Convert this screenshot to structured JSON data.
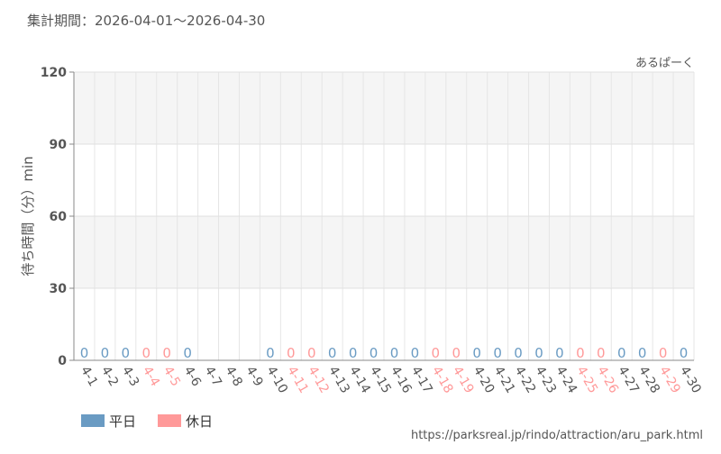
{
  "chart_data": {
    "type": "bar",
    "title": "集計期間：2026-04-01～2026-04-30",
    "brand": "あるぱーく",
    "ylabel": "待ち時間（分）min",
    "source": "https://parksreal.jp/rindo/attraction/aru_park.html",
    "categories": [
      "4-1",
      "4-2",
      "4-3",
      "4-4",
      "4-5",
      "4-6",
      "4-7",
      "4-8",
      "4-9",
      "4-10",
      "4-11",
      "4-12",
      "4-13",
      "4-14",
      "4-15",
      "4-16",
      "4-17",
      "4-18",
      "4-19",
      "4-20",
      "4-21",
      "4-22",
      "4-23",
      "4-24",
      "4-25",
      "4-26",
      "4-27",
      "4-28",
      "4-29",
      "4-30"
    ],
    "series": [
      {
        "name": "平日",
        "color": "#6a9bc3",
        "values": [
          0,
          0,
          0,
          null,
          null,
          0,
          null,
          null,
          null,
          0,
          null,
          null,
          0,
          0,
          0,
          0,
          0,
          null,
          null,
          0,
          0,
          0,
          0,
          0,
          null,
          null,
          0,
          0,
          null,
          0
        ]
      },
      {
        "name": "休日",
        "color": "#ff9999",
        "values": [
          null,
          null,
          null,
          0,
          0,
          null,
          null,
          null,
          null,
          null,
          0,
          0,
          null,
          null,
          null,
          null,
          null,
          0,
          0,
          null,
          null,
          null,
          null,
          null,
          0,
          0,
          null,
          null,
          0,
          null
        ]
      }
    ],
    "ylim": [
      0,
      120
    ],
    "yticks": [
      0,
      30,
      60,
      90,
      120
    ],
    "grid": true
  }
}
